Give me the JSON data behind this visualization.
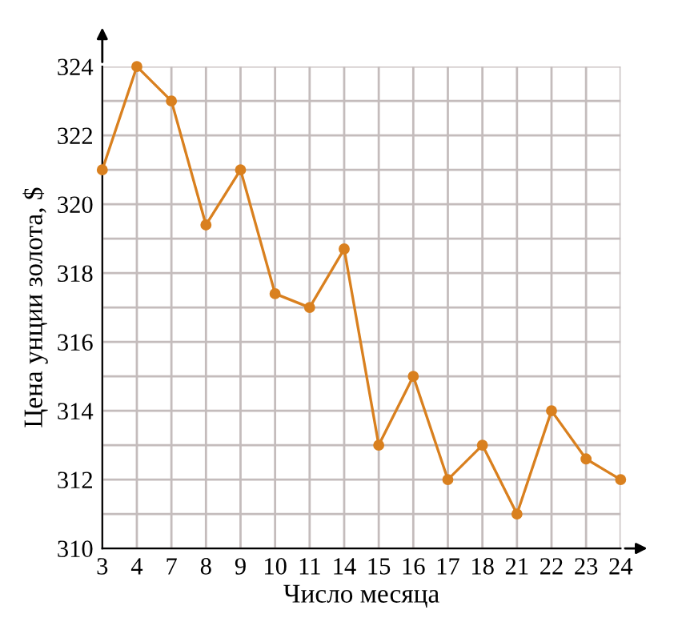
{
  "chart_data": {
    "type": "line",
    "xlabel": "Число месяца",
    "ylabel": "Цена унции золота, $",
    "categories": [
      "3",
      "4",
      "7",
      "8",
      "9",
      "10",
      "11",
      "14",
      "15",
      "16",
      "17",
      "18",
      "21",
      "22",
      "23",
      "24"
    ],
    "series": [
      {
        "color": "#d9801f",
        "values": [
          321,
          324,
          323,
          319.4,
          321,
          317.4,
          317,
          318.7,
          313,
          315,
          312,
          313,
          311,
          314,
          312.6,
          312
        ]
      }
    ],
    "ylim": [
      310,
      324
    ],
    "yticks": [
      310,
      312,
      314,
      316,
      318,
      320,
      322,
      324
    ],
    "grid": true,
    "marker": "circle",
    "line_style": "solid"
  }
}
